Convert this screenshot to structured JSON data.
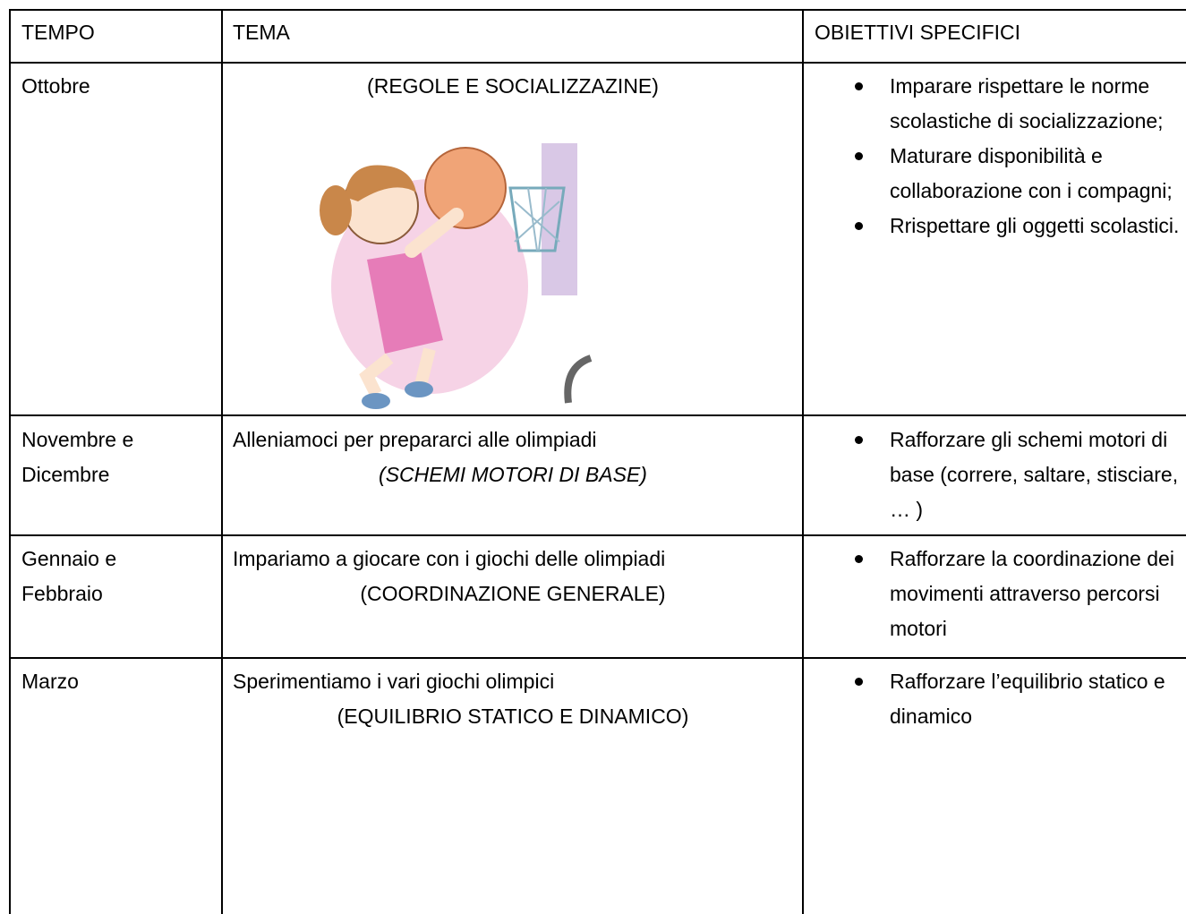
{
  "table": {
    "header": [
      "TEMPO",
      "TEMA",
      "OBIETTIVI SPECIFICI"
    ],
    "rows": [
      {
        "tempo": "Ottobre",
        "tema": [
          "(REGOLE E SOCIALIZZAZINE)"
        ],
        "obiettivi": [
          "Imparare rispettare le norme scolastiche di socializzazione;",
          "Maturare disponibilità e collaborazione con i compagni;",
          "Rrispettare gli oggetti scolastici."
        ]
      },
      {
        "tempo": "Novembre  e Dicembre",
        "tema": [
          "Alleniamoci per prepararci alle olimpiadi",
          "(SCHEMI MOTORI DI BASE)"
        ],
        "obiettivi": [
          "Rafforzare gli schemi motori di base (correre, saltare, stisciare, … )"
        ]
      },
      {
        "tempo": "Gennaio  e Febbraio",
        "tema": [
          "Impariamo a giocare con i giochi delle olimpiadi",
          "(COORDINAZIONE GENERALE)"
        ],
        "obiettivi": [
          "Rafforzare la coordinazione dei movimenti attraverso percorsi motori"
        ]
      },
      {
        "tempo": "Marzo",
        "tema": [
          "Sperimentiamo i vari giochi olimpici",
          "(EQUILIBRIO STATICO E DINAMICO)"
        ],
        "obiettivi": [
          "Rafforzare l’equilibrio statico e dinamico"
        ]
      }
    ]
  }
}
